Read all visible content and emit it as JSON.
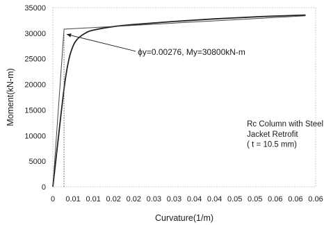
{
  "chart_data": {
    "type": "line",
    "xlabel": "Curvature(1/m)",
    "ylabel": "Moment(kN-m)",
    "xlim": [
      0,
      0.065
    ],
    "ylim": [
      0,
      35000
    ],
    "x_ticks": [
      0,
      0.005,
      0.01,
      0.015,
      0.02,
      0.025,
      0.03,
      0.035,
      0.04,
      0.045,
      0.05,
      0.055,
      0.06,
      0.065
    ],
    "x_tick_labels": [
      "0",
      "0.01",
      "0.01",
      "0.02",
      "0.02",
      "0.03",
      "0.03",
      "0.04",
      "0.04",
      "0.05",
      "0.05",
      "0.06",
      "0.06",
      "0.06"
    ],
    "y_ticks": [
      0,
      5000,
      10000,
      15000,
      20000,
      25000,
      30000,
      35000
    ],
    "y_tick_labels": [
      "0",
      "5000",
      "10000",
      "15000",
      "20000",
      "25000",
      "30000",
      "35000"
    ],
    "grid": false,
    "series": [
      {
        "style": "curve",
        "color": "#222222",
        "points": [
          [
            0,
            0
          ],
          [
            0.001,
            7000
          ],
          [
            0.002,
            14000
          ],
          [
            0.003,
            20500
          ],
          [
            0.004,
            25000
          ],
          [
            0.005,
            27500
          ],
          [
            0.006,
            28800
          ],
          [
            0.008,
            30000
          ],
          [
            0.01,
            30600
          ],
          [
            0.015,
            31300
          ],
          [
            0.02,
            31700
          ],
          [
            0.03,
            32300
          ],
          [
            0.04,
            32800
          ],
          [
            0.05,
            33200
          ],
          [
            0.06,
            33500
          ],
          [
            0.0625,
            33550
          ]
        ]
      },
      {
        "style": "bilinear",
        "color": "#444444",
        "points": [
          [
            0,
            0
          ],
          [
            0.00276,
            30800
          ],
          [
            0.0625,
            33400
          ]
        ]
      },
      {
        "style": "marker",
        "color": "#666666",
        "points": [
          [
            0.00276,
            0
          ],
          [
            0.00276,
            30800
          ]
        ]
      }
    ],
    "annotations": [
      {
        "text": "ϕy=0.00276, My=30800kN-m",
        "x": 0.021,
        "y": 25800,
        "arrow_to": [
          0.0034,
          29800
        ]
      },
      {
        "text": "Rc Column with Steel",
        "x": 0.048,
        "y": 11800
      },
      {
        "text": "Jacket Retrofit",
        "x": 0.048,
        "y": 9800
      },
      {
        "text": "( t = 10.5 mm)",
        "x": 0.048,
        "y": 7800
      }
    ]
  }
}
